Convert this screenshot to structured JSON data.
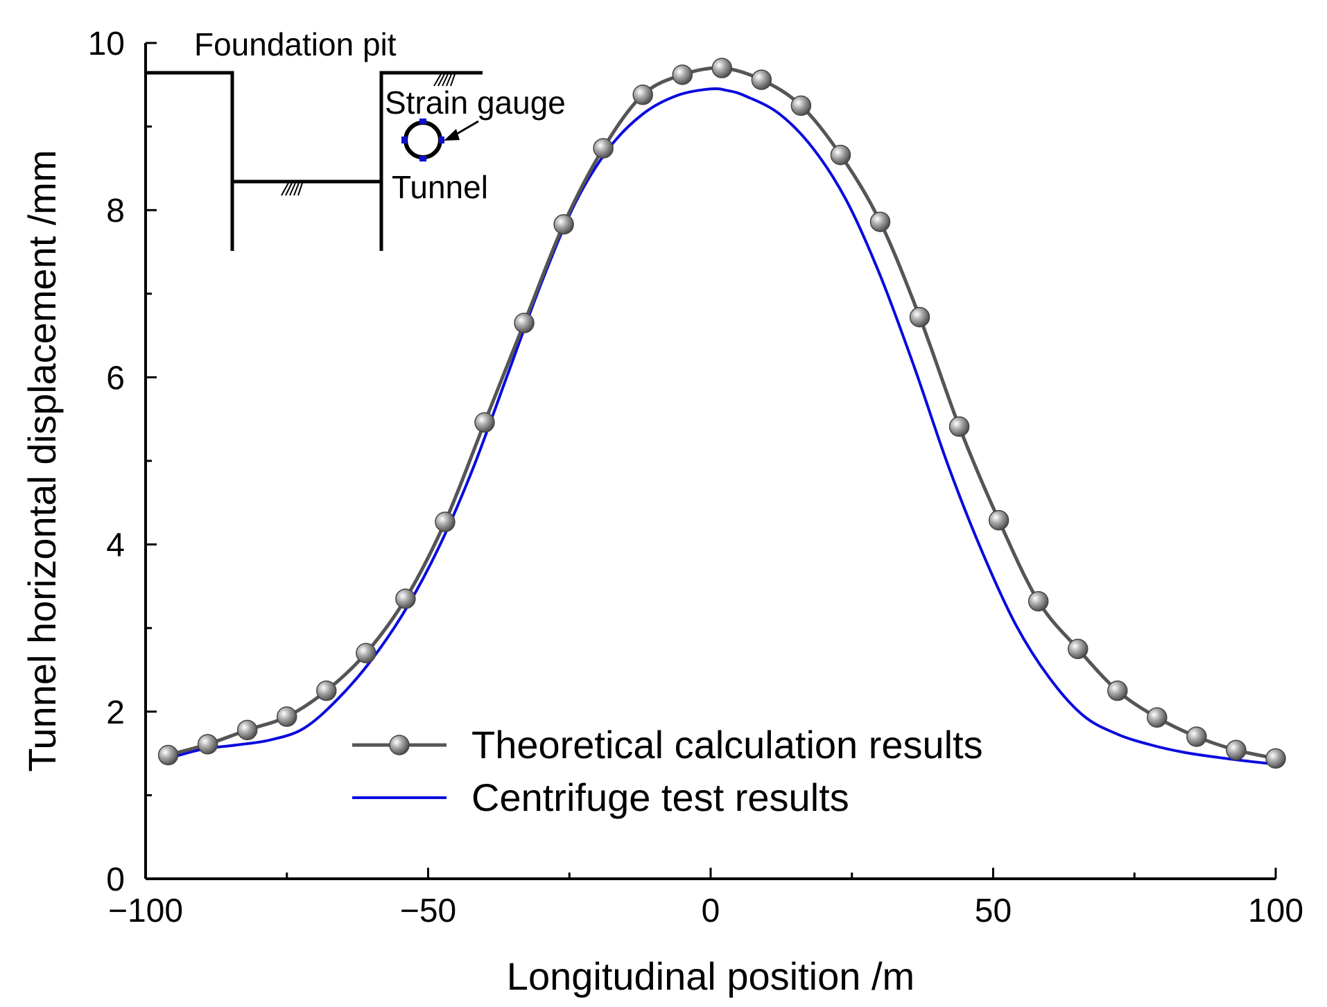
{
  "chart_data": {
    "type": "line",
    "title": "",
    "xlabel": "Longitudinal position /m",
    "ylabel": "Tunnel horizontal displacement /mm",
    "xlim": [
      -100,
      100
    ],
    "ylim": [
      0,
      10
    ],
    "x_ticks": [
      -100,
      -50,
      0,
      50,
      100
    ],
    "x_tick_labels": [
      "−100",
      "−50",
      "0",
      "50",
      "100"
    ],
    "y_ticks": [
      0,
      2,
      4,
      6,
      8,
      10
    ],
    "y_tick_labels": [
      "0",
      "2",
      "4",
      "6",
      "8",
      "10"
    ],
    "grid": false,
    "legend_position": "bottom-center",
    "series": [
      {
        "name": "Theoretical calculation results",
        "color": "#555555",
        "marker": "sphere",
        "x": [
          -96,
          -89,
          -82,
          -75,
          -68,
          -61,
          -54,
          -47,
          -40,
          -33,
          -26,
          -19,
          -12,
          -5,
          2,
          9,
          16,
          23,
          30,
          37,
          44,
          51,
          58,
          65,
          72,
          79,
          86,
          93,
          100
        ],
        "y": [
          1.48,
          1.61,
          1.78,
          1.94,
          2.25,
          2.7,
          3.35,
          4.27,
          5.46,
          6.65,
          7.83,
          8.74,
          9.38,
          9.62,
          9.7,
          9.56,
          9.25,
          8.66,
          7.86,
          6.72,
          5.41,
          4.29,
          3.32,
          2.75,
          2.25,
          1.93,
          1.7,
          1.54,
          1.44
        ]
      },
      {
        "name": "Centrifuge test results",
        "color": "#0a0adf",
        "marker": "none",
        "x": [
          -96,
          -90,
          -84,
          -78,
          -72,
          -66,
          -60,
          -54,
          -48,
          -42,
          -36,
          -30,
          -24,
          -18,
          -12,
          -6,
          0,
          3,
          6,
          12,
          18,
          24,
          30,
          36,
          42,
          48,
          54,
          60,
          66,
          72,
          78,
          84,
          90,
          96,
          100
        ],
        "y": [
          1.44,
          1.55,
          1.6,
          1.66,
          1.8,
          2.15,
          2.62,
          3.22,
          3.98,
          4.92,
          6.02,
          7.12,
          8.08,
          8.74,
          9.15,
          9.37,
          9.45,
          9.43,
          9.37,
          9.16,
          8.75,
          8.12,
          7.22,
          6.13,
          4.95,
          3.92,
          3.04,
          2.4,
          1.95,
          1.73,
          1.6,
          1.51,
          1.45,
          1.4,
          1.37
        ]
      }
    ],
    "inset": {
      "foundation_pit_label": "Foundation pit",
      "strain_gauge_label": "Strain gauge",
      "tunnel_label": "Tunnel"
    }
  }
}
